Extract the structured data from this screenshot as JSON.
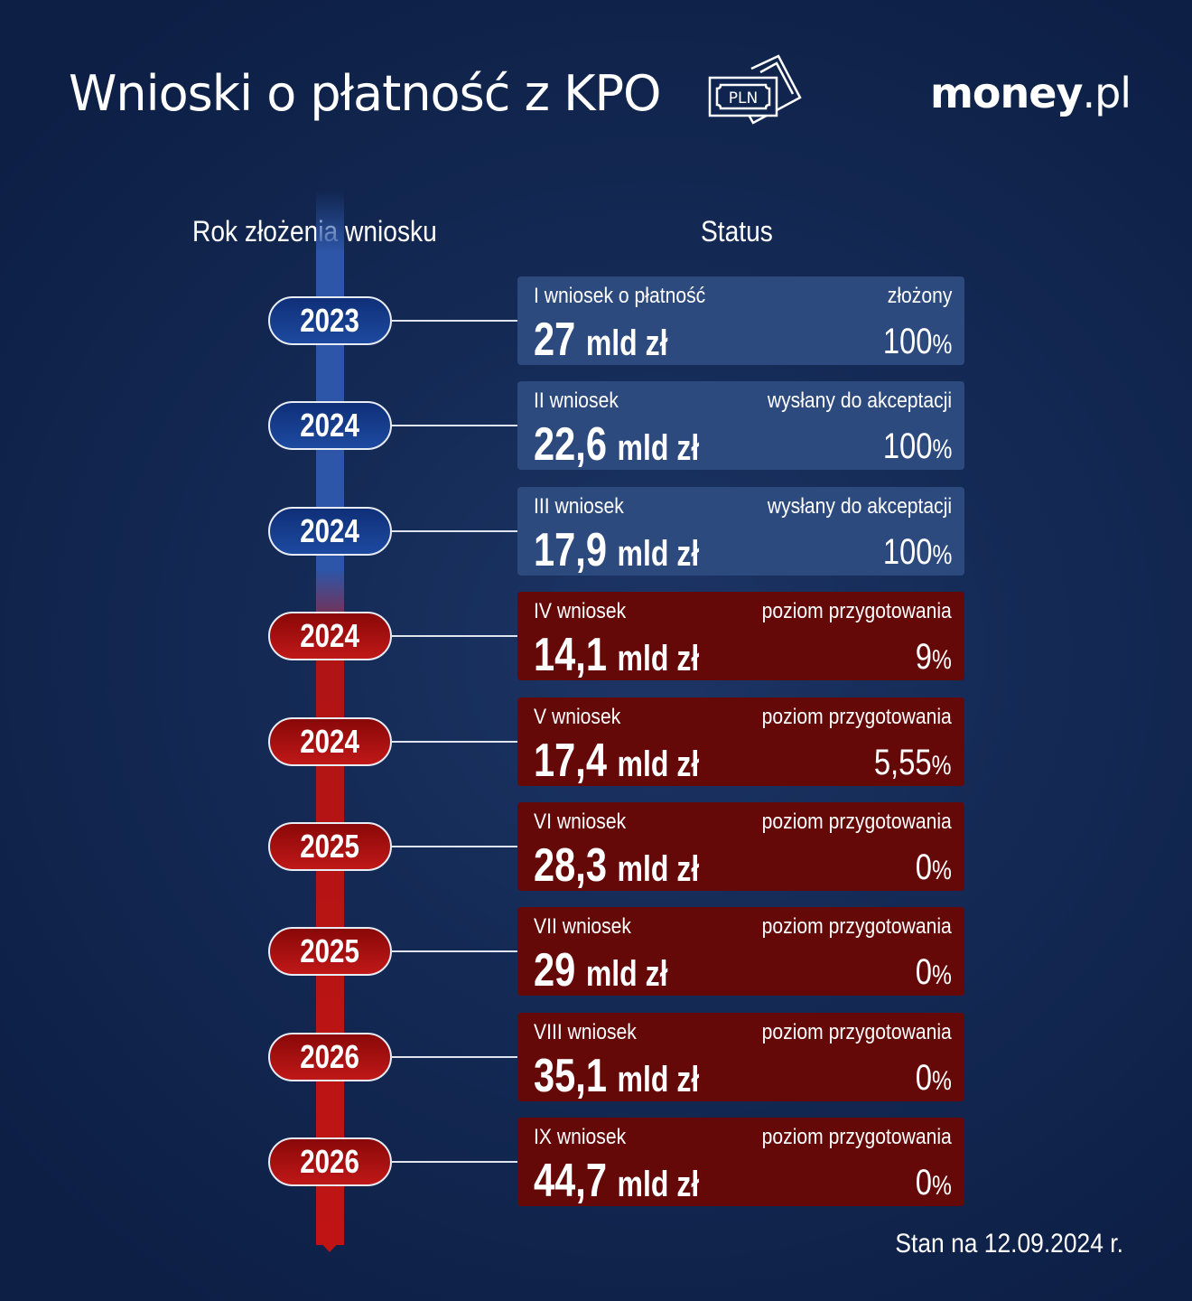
{
  "header": {
    "title": "Wnioski o płatność z KPO",
    "icon_text": "PLN",
    "logo_main": "money",
    "logo_suffix": ".pl"
  },
  "columns": {
    "left": "Rok złożenia wniosku",
    "right": "Status"
  },
  "unit": "mld zł",
  "rows": [
    {
      "year": "2023",
      "name": "I wniosek o płatność",
      "status": "złożony",
      "amount": "27",
      "percent": "100",
      "color": "blue"
    },
    {
      "year": "2024",
      "name": "II wniosek",
      "status": "wysłany do akceptacji",
      "amount": "22,6",
      "percent": "100",
      "color": "blue"
    },
    {
      "year": "2024",
      "name": "III wniosek",
      "status": "wysłany do akceptacji",
      "amount": "17,9",
      "percent": "100",
      "color": "blue"
    },
    {
      "year": "2024",
      "name": "IV wniosek",
      "status": "poziom przygotowania",
      "amount": "14,1",
      "percent": "9",
      "color": "red"
    },
    {
      "year": "2024",
      "name": "V wniosek",
      "status": "poziom przygotowania",
      "amount": "17,4",
      "percent": "5,55",
      "color": "red"
    },
    {
      "year": "2025",
      "name": "VI wniosek",
      "status": "poziom przygotowania",
      "amount": "28,3",
      "percent": "0",
      "color": "red"
    },
    {
      "year": "2025",
      "name": "VII wniosek",
      "status": "poziom przygotowania",
      "amount": "29",
      "percent": "0",
      "color": "red"
    },
    {
      "year": "2026",
      "name": "VIII wniosek",
      "status": "poziom przygotowania",
      "amount": "35,1",
      "percent": "0",
      "color": "red"
    },
    {
      "year": "2026",
      "name": "IX wniosek",
      "status": "poziom przygotowania",
      "amount": "44,7",
      "percent": "0",
      "color": "red"
    }
  ],
  "footer": "Stan na 12.09.2024 r.",
  "colors": {
    "blue_card": "#2d4a7e",
    "red_card": "#650808",
    "background": "#0d1f45"
  }
}
